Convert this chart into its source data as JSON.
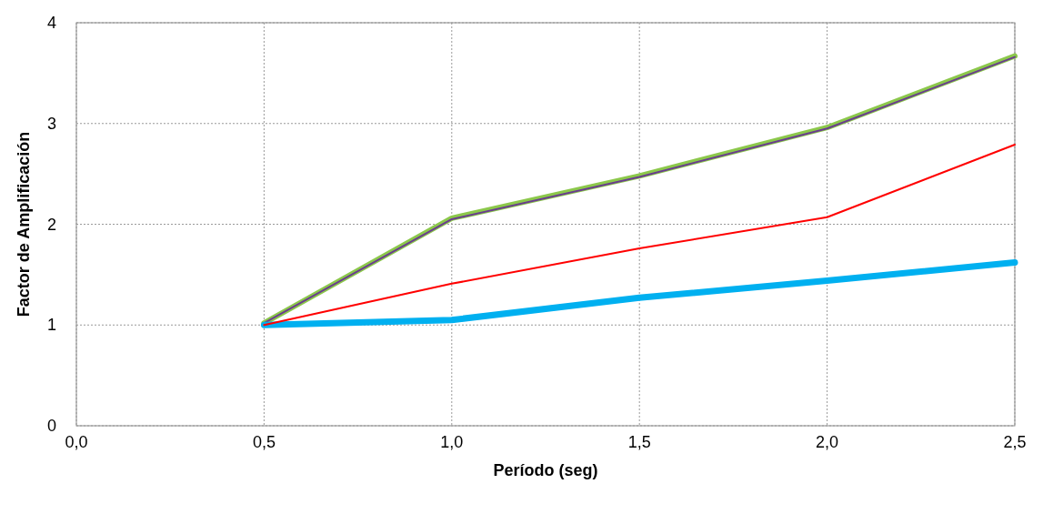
{
  "chart_data": {
    "type": "line",
    "xlabel": "Período (seg)",
    "ylabel": "Factor de Amplificación",
    "x": [
      0.5,
      1.0,
      1.5,
      2.0,
      2.5
    ],
    "series": [
      {
        "color": "#8cc84b",
        "values": [
          1.02,
          2.06,
          2.48,
          2.96,
          3.67
        ]
      },
      {
        "color": "#6a3d8f",
        "values": [
          1.02,
          2.05,
          2.47,
          2.95,
          3.66
        ]
      },
      {
        "color": "#00b0f0",
        "values": [
          1.0,
          1.05,
          1.27,
          1.44,
          1.62
        ]
      },
      {
        "color": "#ff0000",
        "values": [
          1.0,
          1.41,
          1.76,
          2.07,
          2.79
        ]
      }
    ],
    "xlim": [
      0,
      2.5
    ],
    "xticks": [
      {
        "value": 0,
        "label": "0,0"
      },
      {
        "value": 0.5,
        "label": "0,5"
      },
      {
        "value": 1.0,
        "label": "1,0"
      },
      {
        "value": 1.5,
        "label": "1,5"
      },
      {
        "value": 2.0,
        "label": "2,0"
      },
      {
        "value": 2.5,
        "label": "2,5"
      }
    ],
    "ylim": [
      0,
      4
    ],
    "yticks": [
      0,
      1,
      2,
      3,
      4
    ],
    "grid": true,
    "marker": "none",
    "line_style": "solid"
  }
}
